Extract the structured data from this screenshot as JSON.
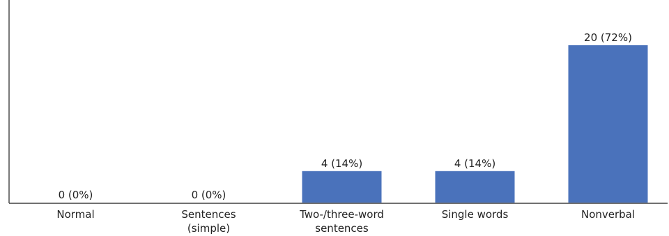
{
  "chart_data": {
    "type": "bar",
    "categories": [
      [
        "Normal"
      ],
      [
        "Sentences",
        "(simple)"
      ],
      [
        "Two-/three-word",
        "sentences"
      ],
      [
        "Single words"
      ],
      [
        "Nonverbal"
      ]
    ],
    "values": [
      0,
      0,
      4,
      4,
      20
    ],
    "data_labels": [
      "0 (0%)",
      "0 (0%)",
      "4 (14%)",
      "4 (14%)",
      "20 (72%)"
    ],
    "title": "",
    "xlabel": "",
    "ylabel": "",
    "ylim": [
      0,
      20
    ],
    "grid": false,
    "legend": "none",
    "colors": {
      "bar": "#4a72bb",
      "axis": "#404040",
      "text": "#222222"
    }
  }
}
